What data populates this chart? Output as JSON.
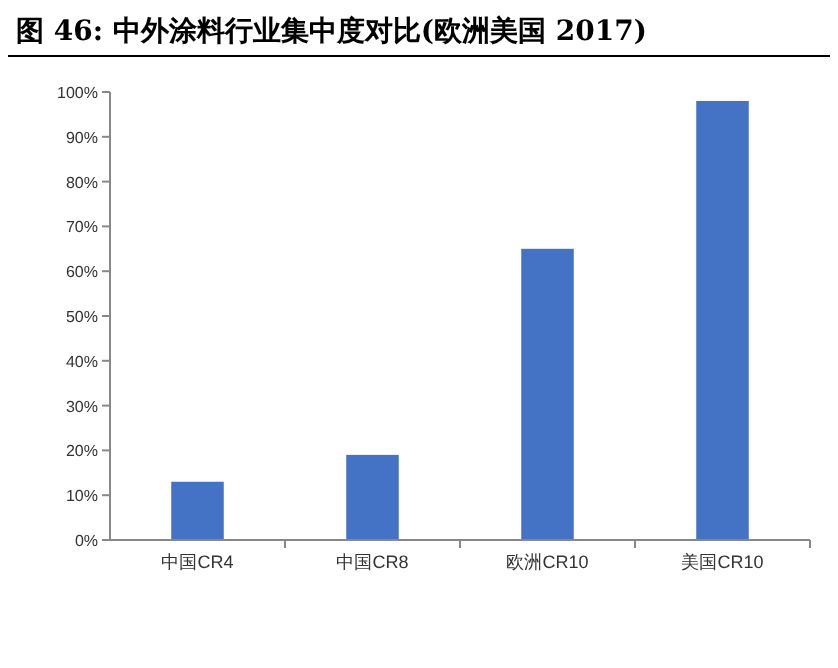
{
  "chart_data": {
    "type": "bar",
    "title": "图 46: 中外涂料行业集中度对比(欧洲美国 2017)",
    "categories": [
      "中国CR4",
      "中国CR8",
      "欧洲CR10",
      "美国CR10"
    ],
    "values": [
      13,
      19,
      65,
      98
    ],
    "color": "#4472c4",
    "ylim": [
      0,
      100
    ],
    "yticks": [
      {
        "value": 0,
        "label": "0%"
      },
      {
        "value": 10,
        "label": "10%"
      },
      {
        "value": 20,
        "label": "20%"
      },
      {
        "value": 30,
        "label": "30%"
      },
      {
        "value": 40,
        "label": "40%"
      },
      {
        "value": 50,
        "label": "50%"
      },
      {
        "value": 60,
        "label": "60%"
      },
      {
        "value": 70,
        "label": "70%"
      },
      {
        "value": 80,
        "label": "80%"
      },
      {
        "value": 90,
        "label": "90%"
      },
      {
        "value": 100,
        "label": "100%"
      }
    ]
  }
}
